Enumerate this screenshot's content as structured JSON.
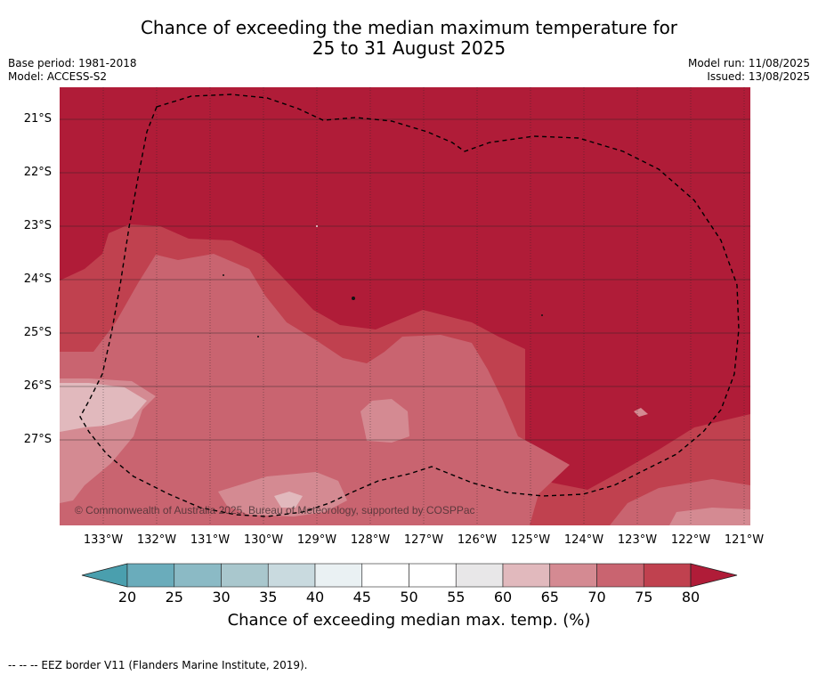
{
  "header": {
    "title_line1": "Chance of exceeding the median maximum temperature for",
    "title_line2": "25 to 31 August 2025",
    "base_period": "Base period: 1981-2018",
    "model": "Model: ACCESS-S2",
    "model_run": "Model run: 11/08/2025",
    "issued": "Issued: 13/08/2025"
  },
  "map": {
    "latitude_labels": [
      "21°S",
      "22°S",
      "23°S",
      "24°S",
      "25°S",
      "26°S",
      "27°S"
    ],
    "longitude_labels": [
      "133°W",
      "132°W",
      "131°W",
      "130°W",
      "129°W",
      "128°W",
      "127°W",
      "126°W",
      "125°W",
      "124°W",
      "123°W",
      "122°W",
      "121°W"
    ],
    "attribution": "© Commonwealth of Australia 2025, Bureau of Meteorology, supported by COSPPac",
    "colors": {
      "above_80": "#b01c38",
      "75_80": "#c0414f",
      "70_75": "#c96470",
      "65_70": "#d48a92",
      "60_65": "#e1b9bd"
    }
  },
  "colorbar": {
    "ticks": [
      "20",
      "25",
      "30",
      "35",
      "40",
      "45",
      "50",
      "55",
      "60",
      "65",
      "70",
      "75",
      "80"
    ],
    "colors": [
      "#6aacbb",
      "#8bbac5",
      "#a9c7cd",
      "#c9dadf",
      "#eaf1f3",
      "#ffffff",
      "#ffffff",
      "#e8e7e8",
      "#e1b9bd",
      "#d48a92",
      "#c96470",
      "#c0414f"
    ],
    "below_color": "#4a9fae",
    "above_color": "#b01c38",
    "label": "Chance of exceeding median max. temp. (%)"
  },
  "footnote": "--  --  -- EEZ border V11 (Flanders Marine Institute, 2019)."
}
